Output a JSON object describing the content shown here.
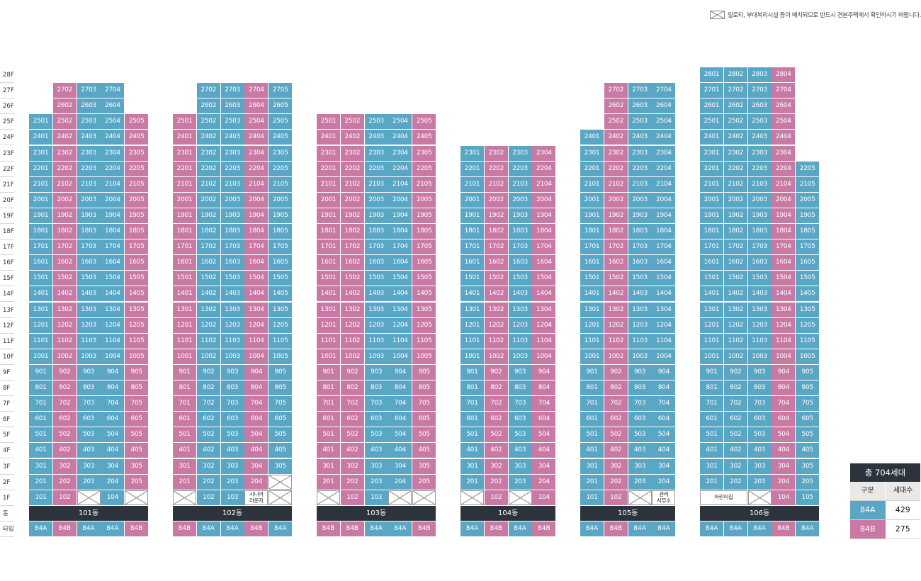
{
  "notice": "필로티, 부대복리시설 등이 배치되므로 반드시 견본주택에서 확인하시기 바랍니다.",
  "floor_labels": [
    "28F",
    "27F",
    "26F",
    "25F",
    "24F",
    "23F",
    "22F",
    "21F",
    "20F",
    "19F",
    "18F",
    "17F",
    "16F",
    "15F",
    "14F",
    "13F",
    "12F",
    "11F",
    "10F",
    "9F",
    "8F",
    "7F",
    "6F",
    "5F",
    "4F",
    "3F",
    "2F",
    "1F",
    "동",
    "타입"
  ],
  "colors": {
    "type_84A": "#5aa6c5",
    "type_84B": "#c97aa4",
    "dark_bar": "#2c333c"
  },
  "buildings": [
    {
      "name": "101동",
      "lines": [
        {
          "line": "01",
          "type": "84A",
          "top": 25,
          "ground": "101"
        },
        {
          "line": "02",
          "type": "84B",
          "top": 27,
          "ground": "102"
        },
        {
          "line": "03",
          "type": "84A",
          "top": 27,
          "ground": ""
        },
        {
          "line": "04",
          "type": "84A",
          "top": 27,
          "ground": "104"
        },
        {
          "line": "05",
          "type": "84B",
          "top": 25,
          "ground": ""
        }
      ]
    },
    {
      "name": "102동",
      "lines": [
        {
          "line": "01",
          "type": "84B",
          "top": 25,
          "ground": ""
        },
        {
          "line": "02",
          "type": "84A",
          "top": 27,
          "ground": "102"
        },
        {
          "line": "03",
          "type": "84A",
          "top": 27,
          "ground": "103"
        },
        {
          "line": "04",
          "type": "84B",
          "top": 27,
          "ground": "시니어\n라운지",
          "ground_facility": true,
          "floor2": "204"
        },
        {
          "line": "05",
          "type": "84A",
          "top": 27,
          "ground": "",
          "floor2_empty": true
        }
      ]
    },
    {
      "name": "103동",
      "lines": [
        {
          "line": "01",
          "type": "84B",
          "top": 25,
          "ground": ""
        },
        {
          "line": "02",
          "type": "84B",
          "top": 25,
          "ground": "102"
        },
        {
          "line": "03",
          "type": "84A",
          "top": 25,
          "ground": "103"
        },
        {
          "line": "04",
          "type": "84A",
          "top": 25,
          "ground": ""
        },
        {
          "line": "05",
          "type": "84B",
          "top": 25,
          "ground": ""
        }
      ]
    },
    {
      "name": "104동",
      "lines": [
        {
          "line": "01",
          "type": "84A",
          "top": 23,
          "ground": ""
        },
        {
          "line": "02",
          "type": "84B",
          "top": 23,
          "ground": "102"
        },
        {
          "line": "03",
          "type": "84A",
          "top": 23,
          "ground": ""
        },
        {
          "line": "04",
          "type": "84B",
          "top": 23,
          "ground": "104"
        }
      ]
    },
    {
      "name": "105동",
      "lines": [
        {
          "line": "01",
          "type": "84A",
          "top": 24,
          "ground": "101"
        },
        {
          "line": "02",
          "type": "84B",
          "top": 27,
          "ground": "102"
        },
        {
          "line": "03",
          "type": "84A",
          "top": 27,
          "ground": ""
        },
        {
          "line": "04",
          "type": "84A",
          "top": 27,
          "ground": "관리\n사무소",
          "ground_facility": true
        }
      ]
    },
    {
      "name": "106동",
      "lines": [
        {
          "line": "01",
          "type": "84A",
          "top": 28,
          "ground": "어린이집",
          "ground_span": 2
        },
        {
          "line": "02",
          "type": "84A",
          "top": 28,
          "ground": "__span__"
        },
        {
          "line": "03",
          "type": "84A",
          "top": 28,
          "ground": ""
        },
        {
          "line": "04",
          "type": "84B",
          "top": 28,
          "ground": "104"
        },
        {
          "line": "05",
          "type": "84A",
          "top": 22,
          "ground": "105"
        }
      ]
    }
  ],
  "summary": {
    "title": "총 704세대",
    "col1": "구분",
    "col2": "세대수",
    "rows": [
      {
        "type": "84A",
        "count": "429"
      },
      {
        "type": "84B",
        "count": "275"
      }
    ]
  }
}
